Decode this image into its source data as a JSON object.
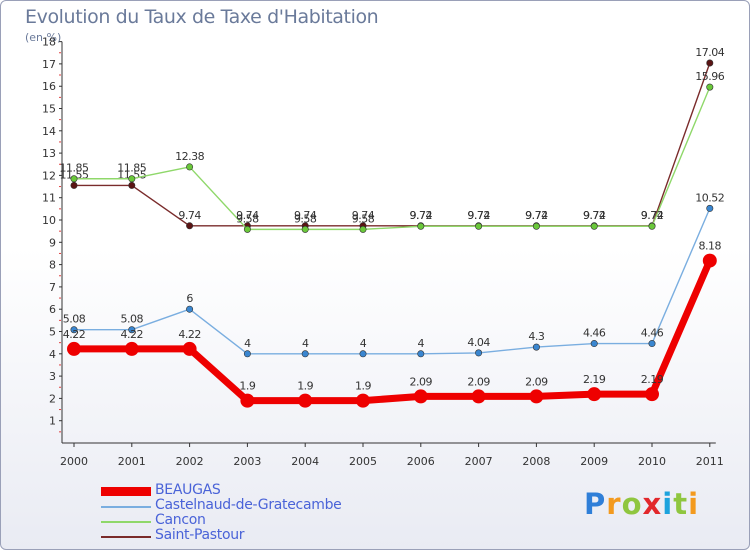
{
  "header": {
    "title": "Evolution du Taux de Taxe d'Habitation",
    "subtitle": "(en %)"
  },
  "logo": {
    "letters": [
      "P",
      "r",
      "o",
      "x",
      "i",
      "t",
      "i"
    ],
    "colors": [
      "#2f7fd8",
      "#f39a1e",
      "#8fc63f",
      "#e2272b",
      "#1ca3dd",
      "#8fc63f",
      "#f39a1e"
    ]
  },
  "chart_data": {
    "type": "line",
    "title": "Evolution du Taux de Taxe d'Habitation",
    "subtitle": "(en %)",
    "xlabel": "",
    "ylabel": "",
    "categories": [
      "2000",
      "2001",
      "2002",
      "2003",
      "2004",
      "2005",
      "2006",
      "2007",
      "2008",
      "2009",
      "2010",
      "2011"
    ],
    "ylim": [
      0,
      18
    ],
    "yticks": [
      1,
      2,
      3,
      4,
      5,
      6,
      7,
      8,
      9,
      10,
      11,
      12,
      13,
      14,
      15,
      16,
      17,
      18
    ],
    "grid": false,
    "legend_position": "bottom-left",
    "series": [
      {
        "name": "Saint-Pastour",
        "color": "#7a2b2b",
        "marker": "#5a1414",
        "values": [
          11.55,
          11.55,
          9.74,
          9.74,
          9.74,
          9.74,
          9.74,
          9.74,
          9.74,
          9.74,
          9.74,
          17.04
        ],
        "labels": [
          "11.55",
          "11.55",
          "9.74",
          "9.74",
          "9.74",
          "9.74",
          "9.74",
          "9.74",
          "9.74",
          "9.74",
          "9.74",
          "17.04"
        ]
      },
      {
        "name": "Cancon",
        "color": "#8fd86a",
        "marker": "#6ac83a",
        "values": [
          11.85,
          11.85,
          12.38,
          9.58,
          9.58,
          9.58,
          9.72,
          9.72,
          9.72,
          9.72,
          9.72,
          15.96
        ],
        "labels": [
          "11.85",
          "11.85",
          "12.38",
          "9.58",
          "9.58",
          "9.58",
          "9.72",
          "9.72",
          "9.72",
          "9.72",
          "9.72",
          "15.96"
        ]
      },
      {
        "name": "Castelnaud-de-Gratecambe",
        "color": "#7aaee0",
        "marker": "#3a86d0",
        "values": [
          5.08,
          5.08,
          6,
          4,
          4,
          4,
          4,
          4.04,
          4.3,
          4.46,
          4.46,
          10.52
        ],
        "labels": [
          "5.08",
          "5.08",
          "6",
          "4",
          "4",
          "4",
          "4",
          "4.04",
          "4.3",
          "4.46",
          "4.46",
          "10.52"
        ]
      },
      {
        "name": "BEAUGAS",
        "color": "#ee0000",
        "marker": "#ee0000",
        "values": [
          4.22,
          4.22,
          4.22,
          1.9,
          1.9,
          1.9,
          2.09,
          2.09,
          2.09,
          2.19,
          2.19,
          8.18
        ],
        "labels": [
          "4.22",
          "4.22",
          "4.22",
          "1.9",
          "1.9",
          "1.9",
          "2.09",
          "2.09",
          "2.09",
          "2.19",
          "2.19",
          "8.18"
        ]
      }
    ],
    "legend": [
      "BEAUGAS",
      "Castelnaud-de-Gratecambe",
      "Cancon",
      "Saint-Pastour"
    ]
  }
}
